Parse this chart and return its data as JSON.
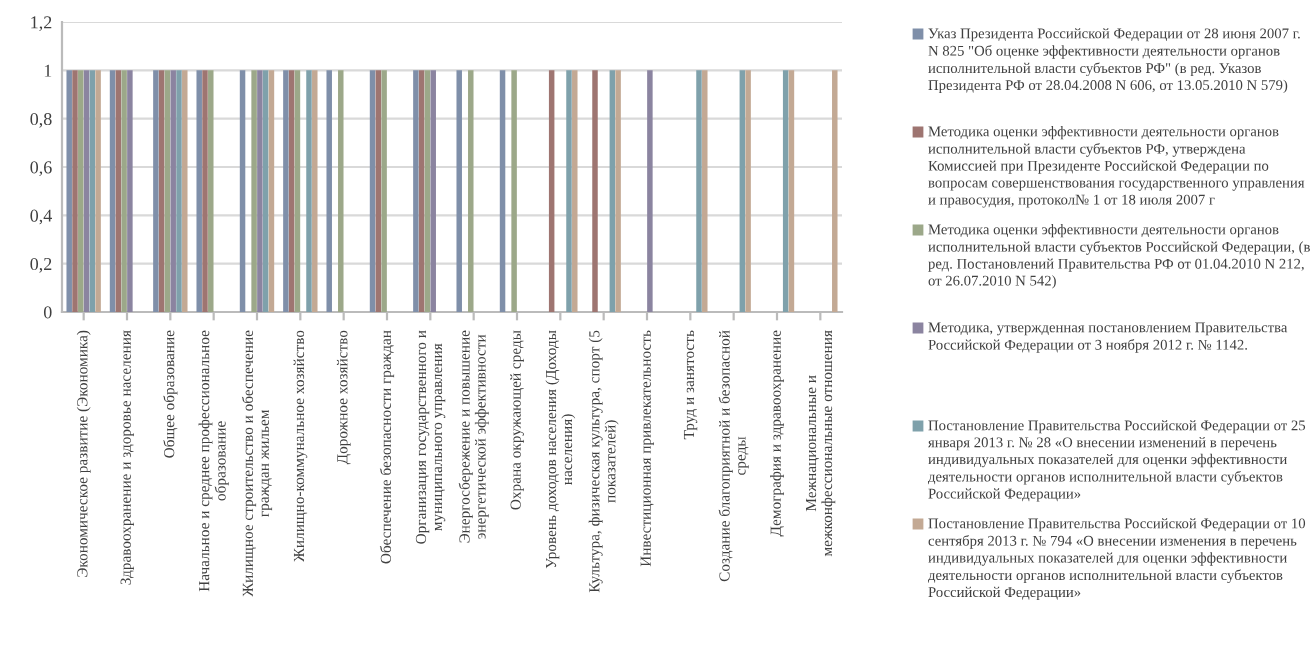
{
  "chart_data": {
    "type": "bar",
    "categories": [
      "Экономическое развитие (Экономика)",
      "Здравоохранение и здоровье населения",
      "Общее образование",
      "Начальное и среднее профессиональное\nобразование",
      "Жилищное строительство и обеспечение\nграждан жильем",
      "Жилищно-коммунальное хозяйство",
      "Дорожное хозяйство",
      "Обеспечение безопасности граждан",
      "Организация государственного и\nмуниципального управления",
      "Энергосбережение и повышение\nэнергетической эффективности",
      "Охрана окружающей среды",
      "Уровень доходов населения (Доходы\nнаселения)",
      "Культура, физическая культура, спорт (5\nпоказателей)",
      "Инвестиционная привлекательность",
      "Труд и занятость",
      "Создание благоприятной и безопасной\nсреды",
      "Демография и здравоохранение",
      "Межнациональные и\nмежконфессиональные отношения"
    ],
    "series": [
      {
        "name": "Указ Президента Российской Федерации от 28 июня 2007 г. N 825 \"Об оценке эффективности деятельности органов исполнительной власти субъектов РФ\" (в ред. Указов Президента РФ от 28.04.2008 N 606, от 13.05.2010 N 579)",
        "color": "#7f8fa9",
        "values": [
          1,
          1,
          1,
          1,
          1,
          1,
          1,
          1,
          1,
          1,
          1,
          null,
          null,
          null,
          null,
          null,
          null,
          null
        ]
      },
      {
        "name": "Методика оценки эффективности деятельности органов исполнительной власти субъектов РФ, утверждена Комиссией при Президенте Российской Федерации по вопросам совершенствования государственного управления и правосудия, протокол№ 1 от 18 июля 2007 г",
        "color": "#9e7571",
        "values": [
          1,
          1,
          1,
          1,
          null,
          1,
          null,
          1,
          1,
          null,
          null,
          1,
          1,
          null,
          null,
          null,
          null,
          null
        ]
      },
      {
        "name": "Методика оценки эффективности деятельности органов исполнительной власти субъектов Российской Федерации, (в ред. Постановлений Правительства РФ от 01.04.2010 N 212, от 26.07.2010 N 542)",
        "color": "#9ca889",
        "values": [
          1,
          1,
          1,
          1,
          1,
          1,
          1,
          1,
          1,
          1,
          1,
          null,
          null,
          null,
          null,
          null,
          null,
          null
        ]
      },
      {
        "name": "Методика, утвержденная постановлением Правительства Российской Федерации от 3 ноября 2012 г. № 1142.",
        "color": "#8b84a0",
        "values": [
          1,
          1,
          1,
          null,
          1,
          null,
          null,
          null,
          1,
          null,
          null,
          null,
          null,
          1,
          null,
          null,
          null,
          null
        ]
      },
      {
        "name": "Постановление Правительства Российской Федерации от 25 января 2013 г. № 28 «О внесении изменений в перечень индивидуальных показателей для оценки эффективности деятельности органов исполнительной власти субъектов Российской Федерации»",
        "color": "#7fa1ab",
        "values": [
          1,
          null,
          1,
          null,
          1,
          1,
          null,
          null,
          null,
          null,
          null,
          1,
          1,
          null,
          1,
          1,
          1,
          null
        ]
      },
      {
        "name": "Постановление Правительства Российской Федерации от 10 сентября 2013 г. № 794 «О внесении изменения в перечень индивидуальных показателей для оценки эффективности деятельности органов исполнительной власти субъектов Российской Федерации»",
        "color": "#c3a994",
        "values": [
          1,
          null,
          1,
          null,
          1,
          1,
          null,
          null,
          null,
          null,
          null,
          1,
          1,
          null,
          1,
          1,
          1,
          1
        ]
      }
    ],
    "ylim": [
      0,
      1.2
    ],
    "yticks": [
      0,
      {
        "value": 0.2,
        "label": "0,2"
      },
      {
        "value": 0.4,
        "label": "0,4"
      },
      {
        "value": 0.6,
        "label": "0,6"
      },
      {
        "value": 0.8,
        "label": "0,8"
      },
      1,
      {
        "value": 1.2,
        "label": "1,2"
      }
    ],
    "grid": "y",
    "legend": "right"
  }
}
